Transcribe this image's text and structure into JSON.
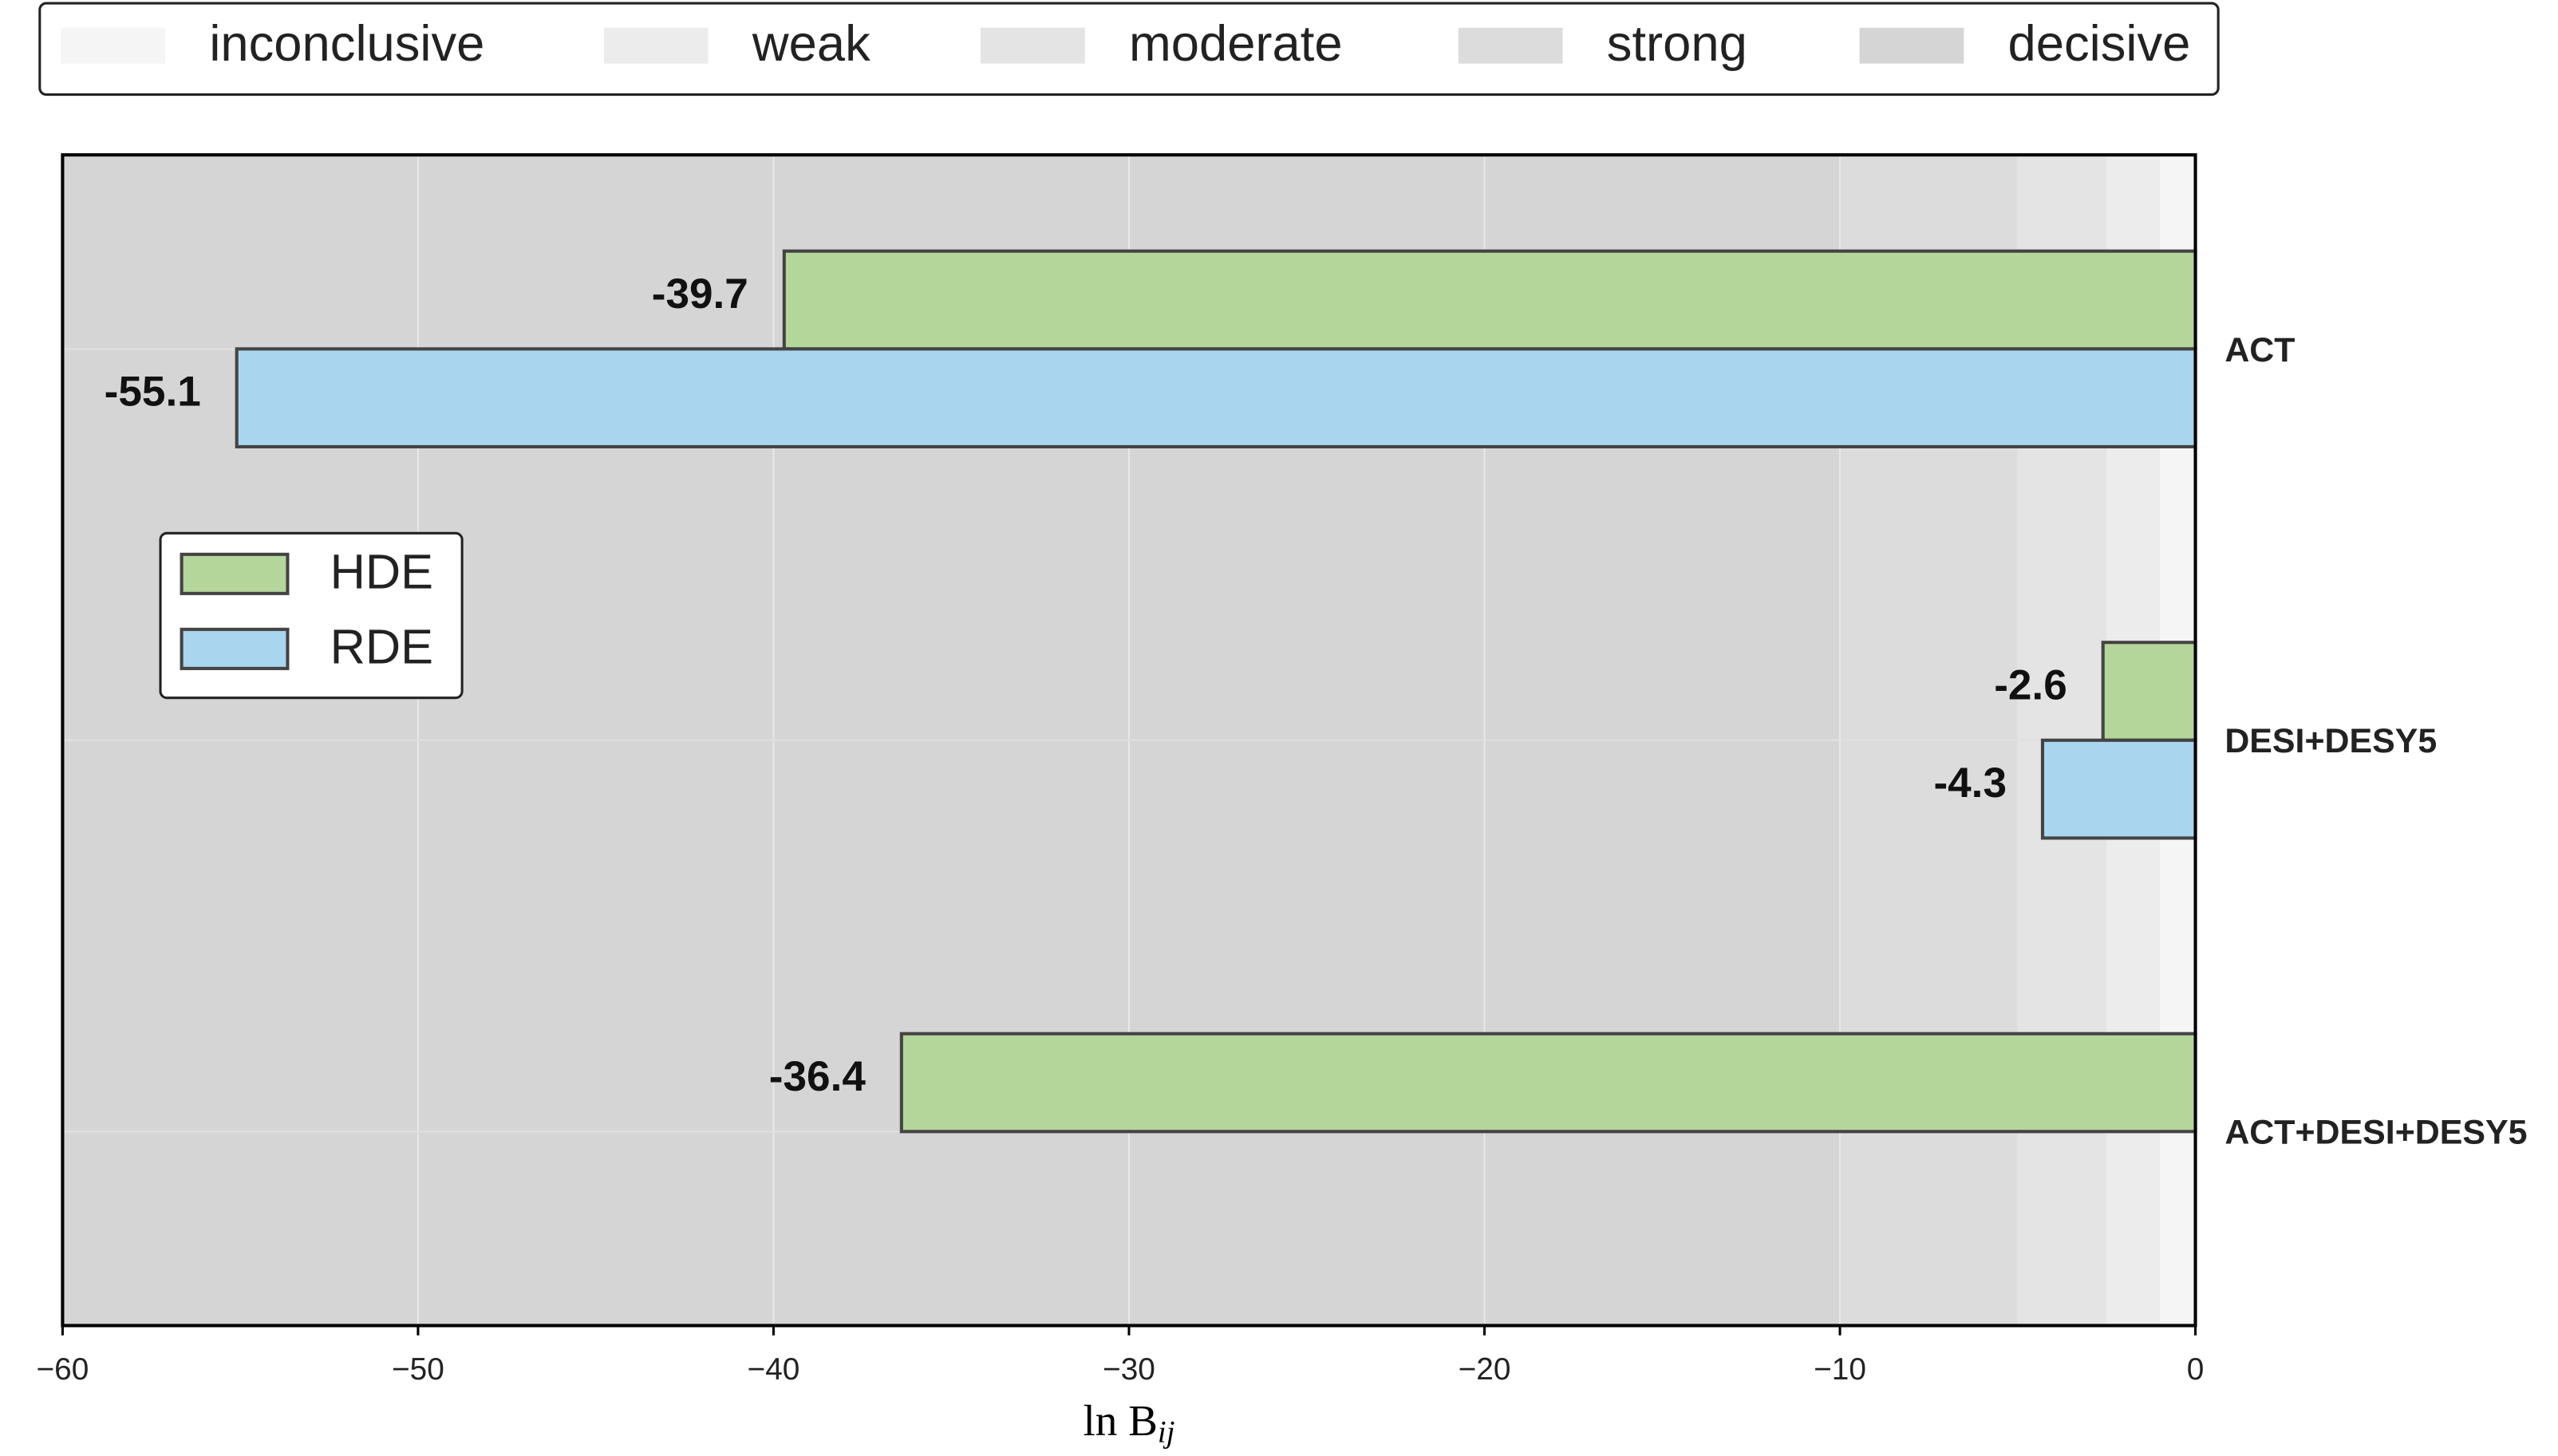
{
  "chart_data": {
    "type": "barh",
    "categories": [
      "ACT",
      "DESI+DESY5",
      "ACT+DESI+DESY5"
    ],
    "series": [
      {
        "name": "HDE",
        "color": "#b5d69b",
        "values": [
          -39.7,
          -2.6,
          -36.4
        ]
      },
      {
        "name": "RDE",
        "color": "#a9d5ee",
        "values": [
          -55.1,
          -4.3,
          null
        ]
      }
    ],
    "bands": [
      {
        "name": "inconclusive",
        "range": [
          -1,
          0
        ],
        "color": "#f5f5f5"
      },
      {
        "name": "weak",
        "range": [
          -2.5,
          -1
        ],
        "color": "#ececec"
      },
      {
        "name": "moderate",
        "range": [
          -5,
          -2.5
        ],
        "color": "#e4e4e4"
      },
      {
        "name": "strong",
        "range": [
          -10,
          -5
        ],
        "color": "#dcdcdc"
      },
      {
        "name": "decisive",
        "range": [
          -60,
          -10
        ],
        "color": "#d5d5d5"
      }
    ],
    "xlabel": "ln B",
    "xlabel_subscript": "ij",
    "xlim": [
      -60,
      0
    ],
    "xticks": [
      {
        "value": -60,
        "label": "−60"
      },
      {
        "value": -50,
        "label": "−50"
      },
      {
        "value": -40,
        "label": "−40"
      },
      {
        "value": -30,
        "label": "−30"
      },
      {
        "value": -20,
        "label": "−20"
      },
      {
        "value": -10,
        "label": "−10"
      },
      0
    ],
    "grid": true,
    "legend": "left"
  }
}
